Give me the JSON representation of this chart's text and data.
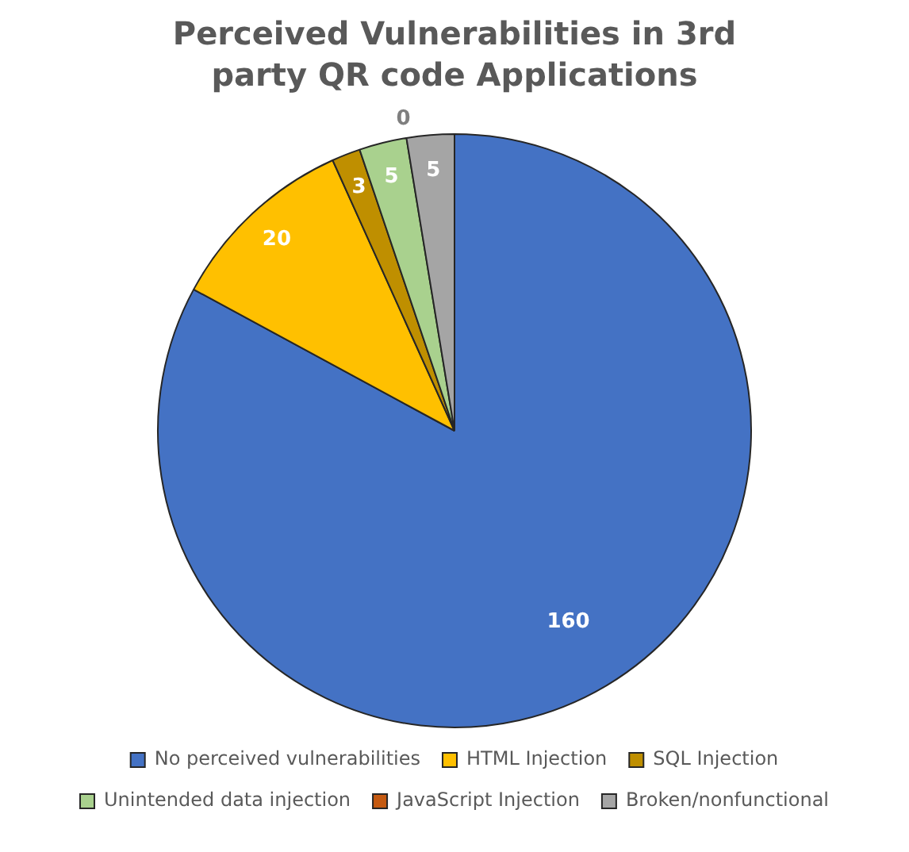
{
  "chart_data": {
    "type": "pie",
    "title": "Perceived Vulnerabilities in 3rd party QR code Applications",
    "categories": [
      "No perceived vulnerabilities",
      "HTML Injection",
      "SQL Injection",
      "Unintended data injection",
      "JavaScript Injection",
      "Broken/nonfunctional"
    ],
    "values": [
      160,
      20,
      3,
      5,
      0,
      5
    ],
    "colors": [
      "#4472c4",
      "#ffc000",
      "#bf8f00",
      "#a9d18e",
      "#c55a11",
      "#a5a5a5"
    ],
    "value_labels": [
      "160",
      "20",
      "3",
      "5",
      "0",
      "5"
    ],
    "legend": "bottom"
  }
}
